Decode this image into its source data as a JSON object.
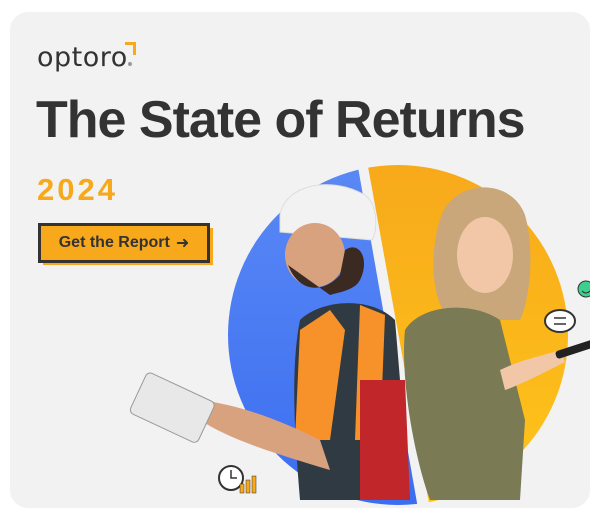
{
  "brand": {
    "logo_text": "optoro"
  },
  "headline": {
    "title": "The State of Returns",
    "year": "2024"
  },
  "cta": {
    "label": "Get the Report",
    "icon": "arrow-right-icon"
  },
  "colors": {
    "accent": "#f7a81b",
    "blue": "#4a7cf0",
    "text": "#333333",
    "background": "#f2f2f2"
  },
  "icons": [
    "clock-growth-icon",
    "exchange-chat-icon",
    "smiley-icon"
  ]
}
